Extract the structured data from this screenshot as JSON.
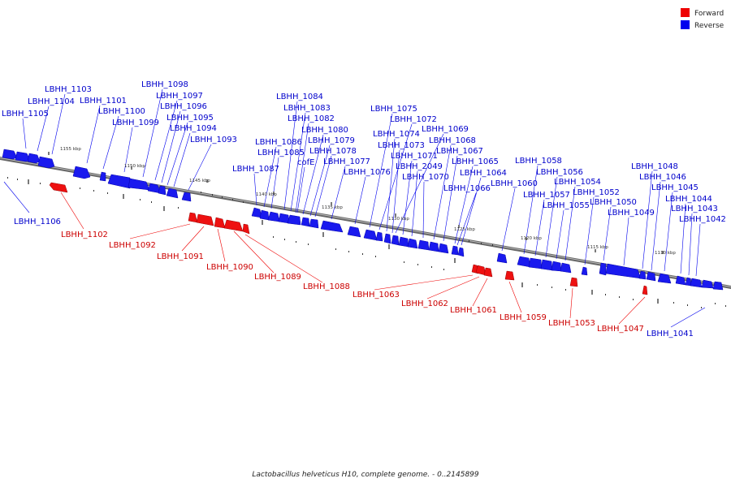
{
  "caption": "Lactobacillus helveticus H10, complete genome. - 0..2145899",
  "legend": [
    {
      "label": "Forward",
      "color": "#ee0000"
    },
    {
      "label": "Reverse",
      "color": "#0000ee"
    }
  ],
  "ticks": [
    "1155 kbp",
    "1150 kbp",
    "1145 kbp",
    "1140 kbp",
    "1135 kbp",
    "1130 kbp",
    "1125 kbp",
    "1120 kbp",
    "1115 kbp",
    "1110 kbp"
  ],
  "labels": {
    "l1103": "LBHH_1103",
    "l1104": "LBHH_1104",
    "l1105": "LBHH_1105",
    "l1101": "LBHH_1101",
    "l1100": "LBHH_1100",
    "l1099": "LBHH_1099",
    "l1098": "LBHH_1098",
    "l1097": "LBHH_1097",
    "l1096": "LBHH_1096",
    "l1095": "LBHH_1095",
    "l1094": "LBHH_1094",
    "l1093": "LBHH_1093",
    "l1084": "LBHH_1084",
    "l1083": "LBHH_1083",
    "l1082": "LBHH_1082",
    "l1080": "LBHH_1080",
    "l1086": "LBHH_1086",
    "l1079": "LBHH_1079",
    "l1085": "LBHH_1085",
    "l1078": "LBHH_1078",
    "lcofE": "cofE",
    "l1077": "LBHH_1077",
    "l1087": "LBHH_1087",
    "l1076": "LBHH_1076",
    "l1075": "LBHH_1075",
    "l1072": "LBHH_1072",
    "l1074": "LBHH_1074",
    "l1069": "LBHH_1069",
    "l1073": "LBHH_1073",
    "l1068": "LBHH_1068",
    "l1071": "LBHH_1071",
    "l1067": "LBHH_1067",
    "l2049": "LBHH_2049",
    "l1065": "LBHH_1065",
    "l1070": "LBHH_1070",
    "l1064": "LBHH_1064",
    "l1066": "LBHH_1066",
    "l1060": "LBHH_1060",
    "l1058": "LBHH_1058",
    "l1056": "LBHH_1056",
    "l1057": "LBHH_1057",
    "l1054": "LBHH_1054",
    "l1055": "LBHH_1055",
    "l1052": "LBHH_1052",
    "l1050": "LBHH_1050",
    "l1049": "LBHH_1049",
    "l1048": "LBHH_1048",
    "l1046": "LBHH_1046",
    "l1045": "LBHH_1045",
    "l1044": "LBHH_1044",
    "l1043": "LBHH_1043",
    "l1042": "LBHH_1042",
    "l1106": "LBHH_1106",
    "l1102": "LBHH_1102",
    "l1092": "LBHH_1092",
    "l1091": "LBHH_1091",
    "l1090": "LBHH_1090",
    "l1089": "LBHH_1089",
    "l1088": "LBHH_1088",
    "l1063": "LBHH_1063",
    "l1062": "LBHH_1062",
    "l1061": "LBHH_1061",
    "l1059": "LBHH_1059",
    "l1053": "LBHH_1053",
    "l1047": "LBHH_1047",
    "l1041": "LBHH_1041"
  }
}
